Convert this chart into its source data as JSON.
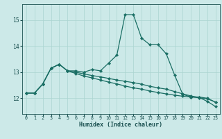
{
  "xlabel": "Humidex (Indice chaleur)",
  "bg_color": "#cce9e8",
  "line_color": "#1a6e64",
  "grid_color": "#aad4d0",
  "text_color": "#1a5050",
  "xlim": [
    -0.5,
    23.5
  ],
  "ylim": [
    11.4,
    15.6
  ],
  "yticks": [
    12,
    13,
    14,
    15
  ],
  "xticks": [
    0,
    1,
    2,
    3,
    4,
    5,
    6,
    7,
    8,
    9,
    10,
    11,
    12,
    13,
    14,
    15,
    16,
    17,
    18,
    19,
    20,
    21,
    22,
    23
  ],
  "line1_x": [
    0,
    1,
    2,
    3,
    4,
    5,
    6,
    7,
    8,
    9,
    10,
    11,
    12,
    13,
    14,
    15,
    16,
    17,
    18,
    19,
    20,
    21,
    22,
    23
  ],
  "line1_y": [
    12.2,
    12.2,
    12.55,
    13.15,
    13.3,
    13.05,
    13.05,
    13.0,
    13.1,
    13.05,
    13.35,
    13.65,
    15.2,
    15.2,
    14.3,
    14.05,
    14.05,
    13.7,
    12.9,
    12.15,
    12.05,
    12.05,
    12.0,
    11.85
  ],
  "line2_x": [
    0,
    1,
    2,
    3,
    4,
    5,
    6,
    7,
    8,
    9,
    10,
    11,
    12,
    13,
    14,
    15,
    16,
    17,
    18,
    19,
    20,
    21,
    22,
    23
  ],
  "line2_y": [
    12.2,
    12.2,
    12.55,
    13.15,
    13.3,
    13.05,
    12.95,
    12.85,
    12.78,
    12.7,
    12.62,
    12.55,
    12.47,
    12.4,
    12.35,
    12.28,
    12.22,
    12.17,
    12.12,
    12.08,
    12.05,
    12.02,
    11.98,
    11.85
  ],
  "line3_x": [
    0,
    1,
    2,
    3,
    4,
    5,
    6,
    7,
    8,
    9,
    10,
    11,
    12,
    13,
    14,
    15,
    16,
    17,
    18,
    19,
    20,
    21,
    22,
    23
  ],
  "line3_y": [
    12.2,
    12.2,
    12.55,
    13.15,
    13.3,
    13.05,
    13.0,
    12.93,
    12.87,
    12.82,
    12.76,
    12.7,
    12.65,
    12.6,
    12.54,
    12.46,
    12.4,
    12.35,
    12.26,
    12.17,
    12.09,
    12.03,
    11.88,
    11.68
  ]
}
